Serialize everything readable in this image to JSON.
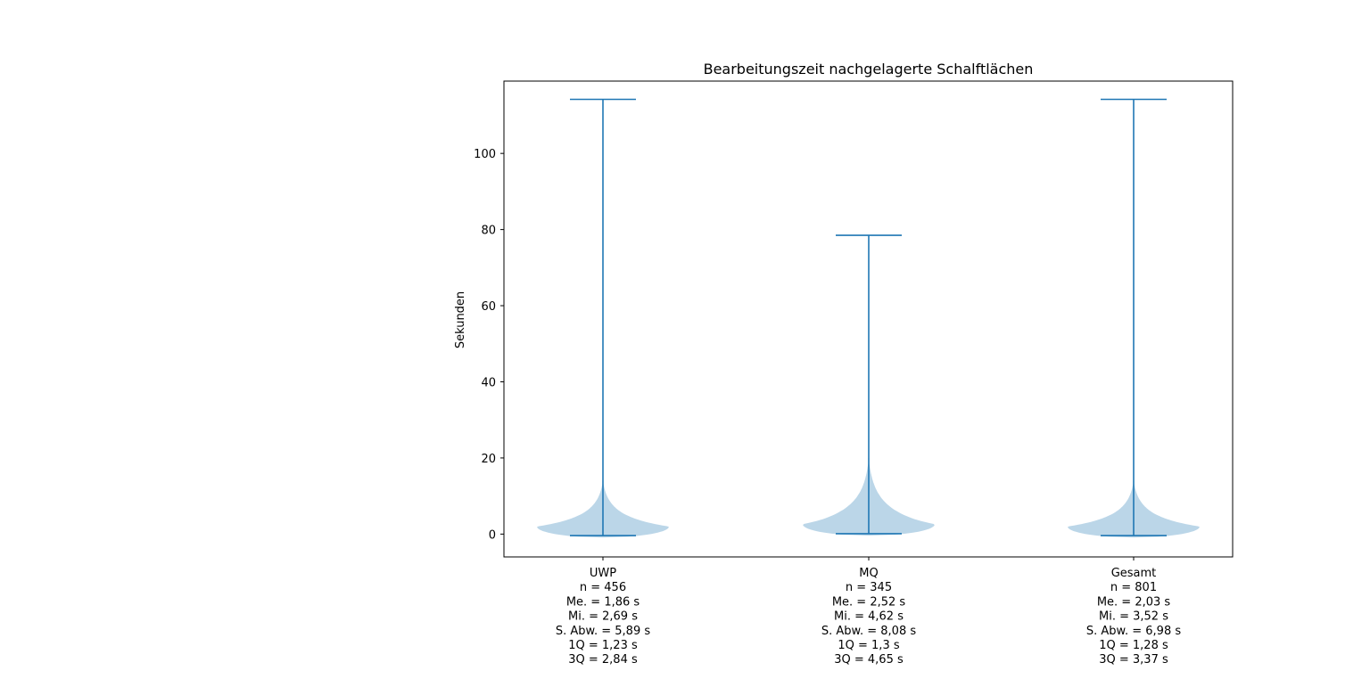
{
  "chart_data": {
    "type": "violin",
    "title": "Bearbeitungszeit nachgelagerte Schalftlächen",
    "xlabel": "",
    "ylabel": "Sekunden",
    "ylim": [
      -6,
      119
    ],
    "yticks": [
      0,
      20,
      40,
      60,
      80,
      100
    ],
    "grid": false,
    "colors": {
      "body": "#1f77b4",
      "line": "#1f77b4"
    },
    "groups": [
      {
        "name": "UWP",
        "stats": [
          "n = 456",
          "Me. = 1,86 s",
          "Mi. = 2,69 s",
          "S. Abw. = 5,89 s",
          "1Q = 1,23 s",
          "3Q = 2,84 s"
        ],
        "min": -0.4,
        "max": 114.2,
        "peak": 2.0
      },
      {
        "name": "MQ",
        "stats": [
          "n = 345",
          "Me. = 2,52 s",
          "Mi. = 4,62 s",
          "S. Abw. = 8,08 s",
          "1Q = 1,3 s",
          "3Q = 4,65 s"
        ],
        "min": 0.1,
        "max": 78.5,
        "peak": 2.6
      },
      {
        "name": "Gesamt",
        "stats": [
          "n = 801",
          "Me. = 2,03 s",
          "Mi. = 3,52 s",
          "S. Abw. = 6,98 s",
          "1Q = 1,28 s",
          "3Q = 3,37 s"
        ],
        "min": -0.4,
        "max": 114.2,
        "peak": 2.0
      }
    ]
  }
}
